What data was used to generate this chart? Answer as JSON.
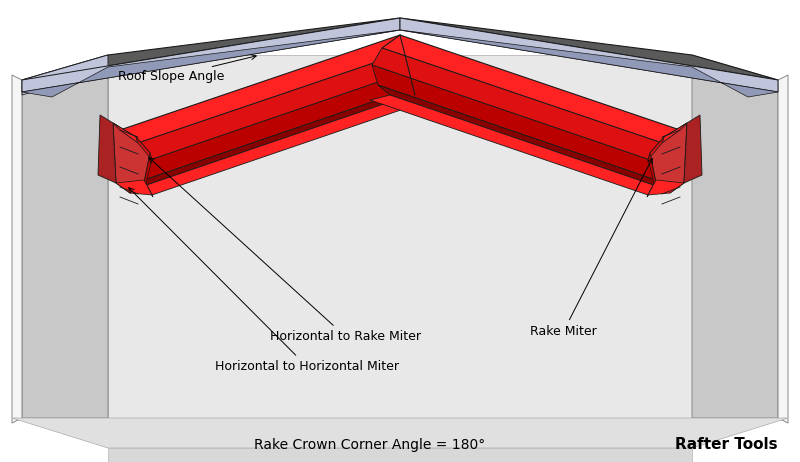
{
  "bg_color": "#ffffff",
  "label_roof_slope": "Roof Slope Angle",
  "label_h_to_rake": "Horizontal to Rake Miter",
  "label_h_to_h": "Horizontal to Horizontal Miter",
  "label_rake_miter": "Rake Miter",
  "label_corner_angle": "Rake Crown Corner Angle = 180°",
  "label_rafter_tools": "Rafter Tools",
  "colors": {
    "white": "#ffffff",
    "wall_white": "#f0f0f0",
    "wall_light": "#e8e8e8",
    "wall_mid": "#d0d0d0",
    "wall_dark": "#b0b0b0",
    "wall_side": "#c0c0c0",
    "gable_dark": "#606060",
    "gable_mid": "#707070",
    "soffit_light": "#c0c5dc",
    "soffit_dark": "#9099b8",
    "red_top": "#ff2222",
    "red_face": "#dd1111",
    "red_mid": "#bb0000",
    "red_dark": "#880000",
    "red_darker": "#660000",
    "outline": "#1a1a1a"
  }
}
